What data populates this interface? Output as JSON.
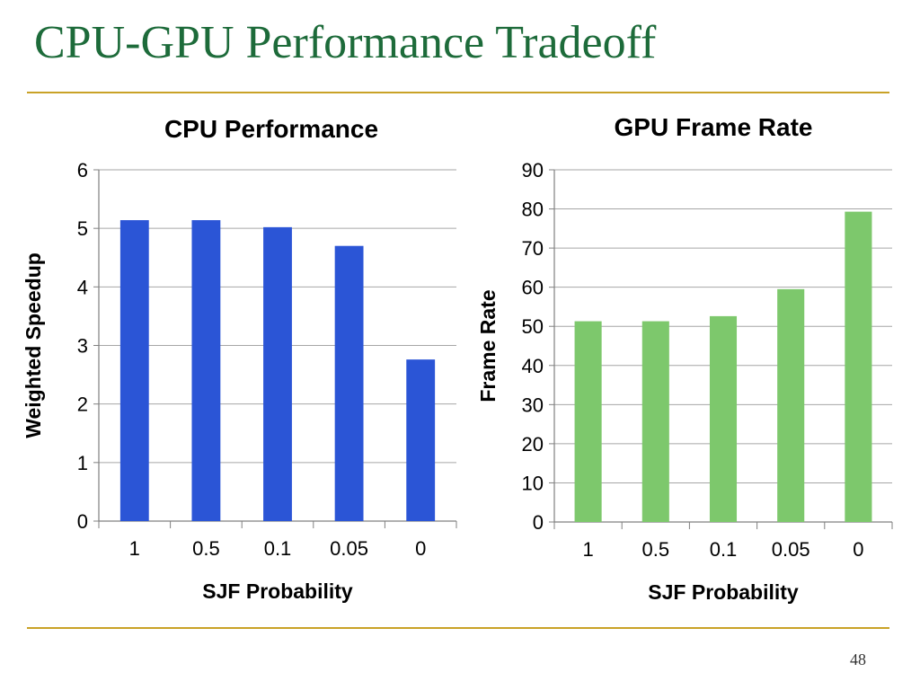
{
  "slide": {
    "title": "CPU-GPU Performance Tradeoff",
    "page_number": "48",
    "rule_color": "#c9a227",
    "title_color": "#1d6b3a"
  },
  "chart_data": [
    {
      "type": "bar",
      "title": "CPU Performance",
      "xlabel": "SJF Probability",
      "ylabel": "Weighted Speedup",
      "categories": [
        "1",
        "0.5",
        "0.1",
        "0.05",
        "0"
      ],
      "values": [
        5.14,
        5.14,
        5.02,
        4.7,
        2.76
      ],
      "ylim": [
        0,
        6
      ],
      "yticks": [
        "0",
        "1",
        "2",
        "3",
        "4",
        "5",
        "6"
      ],
      "grid": true,
      "color": "#2b55d6"
    },
    {
      "type": "bar",
      "title": "GPU Frame Rate",
      "xlabel": "SJF Probability",
      "ylabel": "Frame Rate",
      "categories": [
        "1",
        "0.5",
        "0.1",
        "0.05",
        "0"
      ],
      "values": [
        51.3,
        51.3,
        52.6,
        59.5,
        79.3
      ],
      "ylim": [
        0,
        90
      ],
      "yticks": [
        "0",
        "10",
        "20",
        "30",
        "40",
        "50",
        "60",
        "70",
        "80",
        "90"
      ],
      "grid": true,
      "color": "#7dc86c"
    }
  ]
}
